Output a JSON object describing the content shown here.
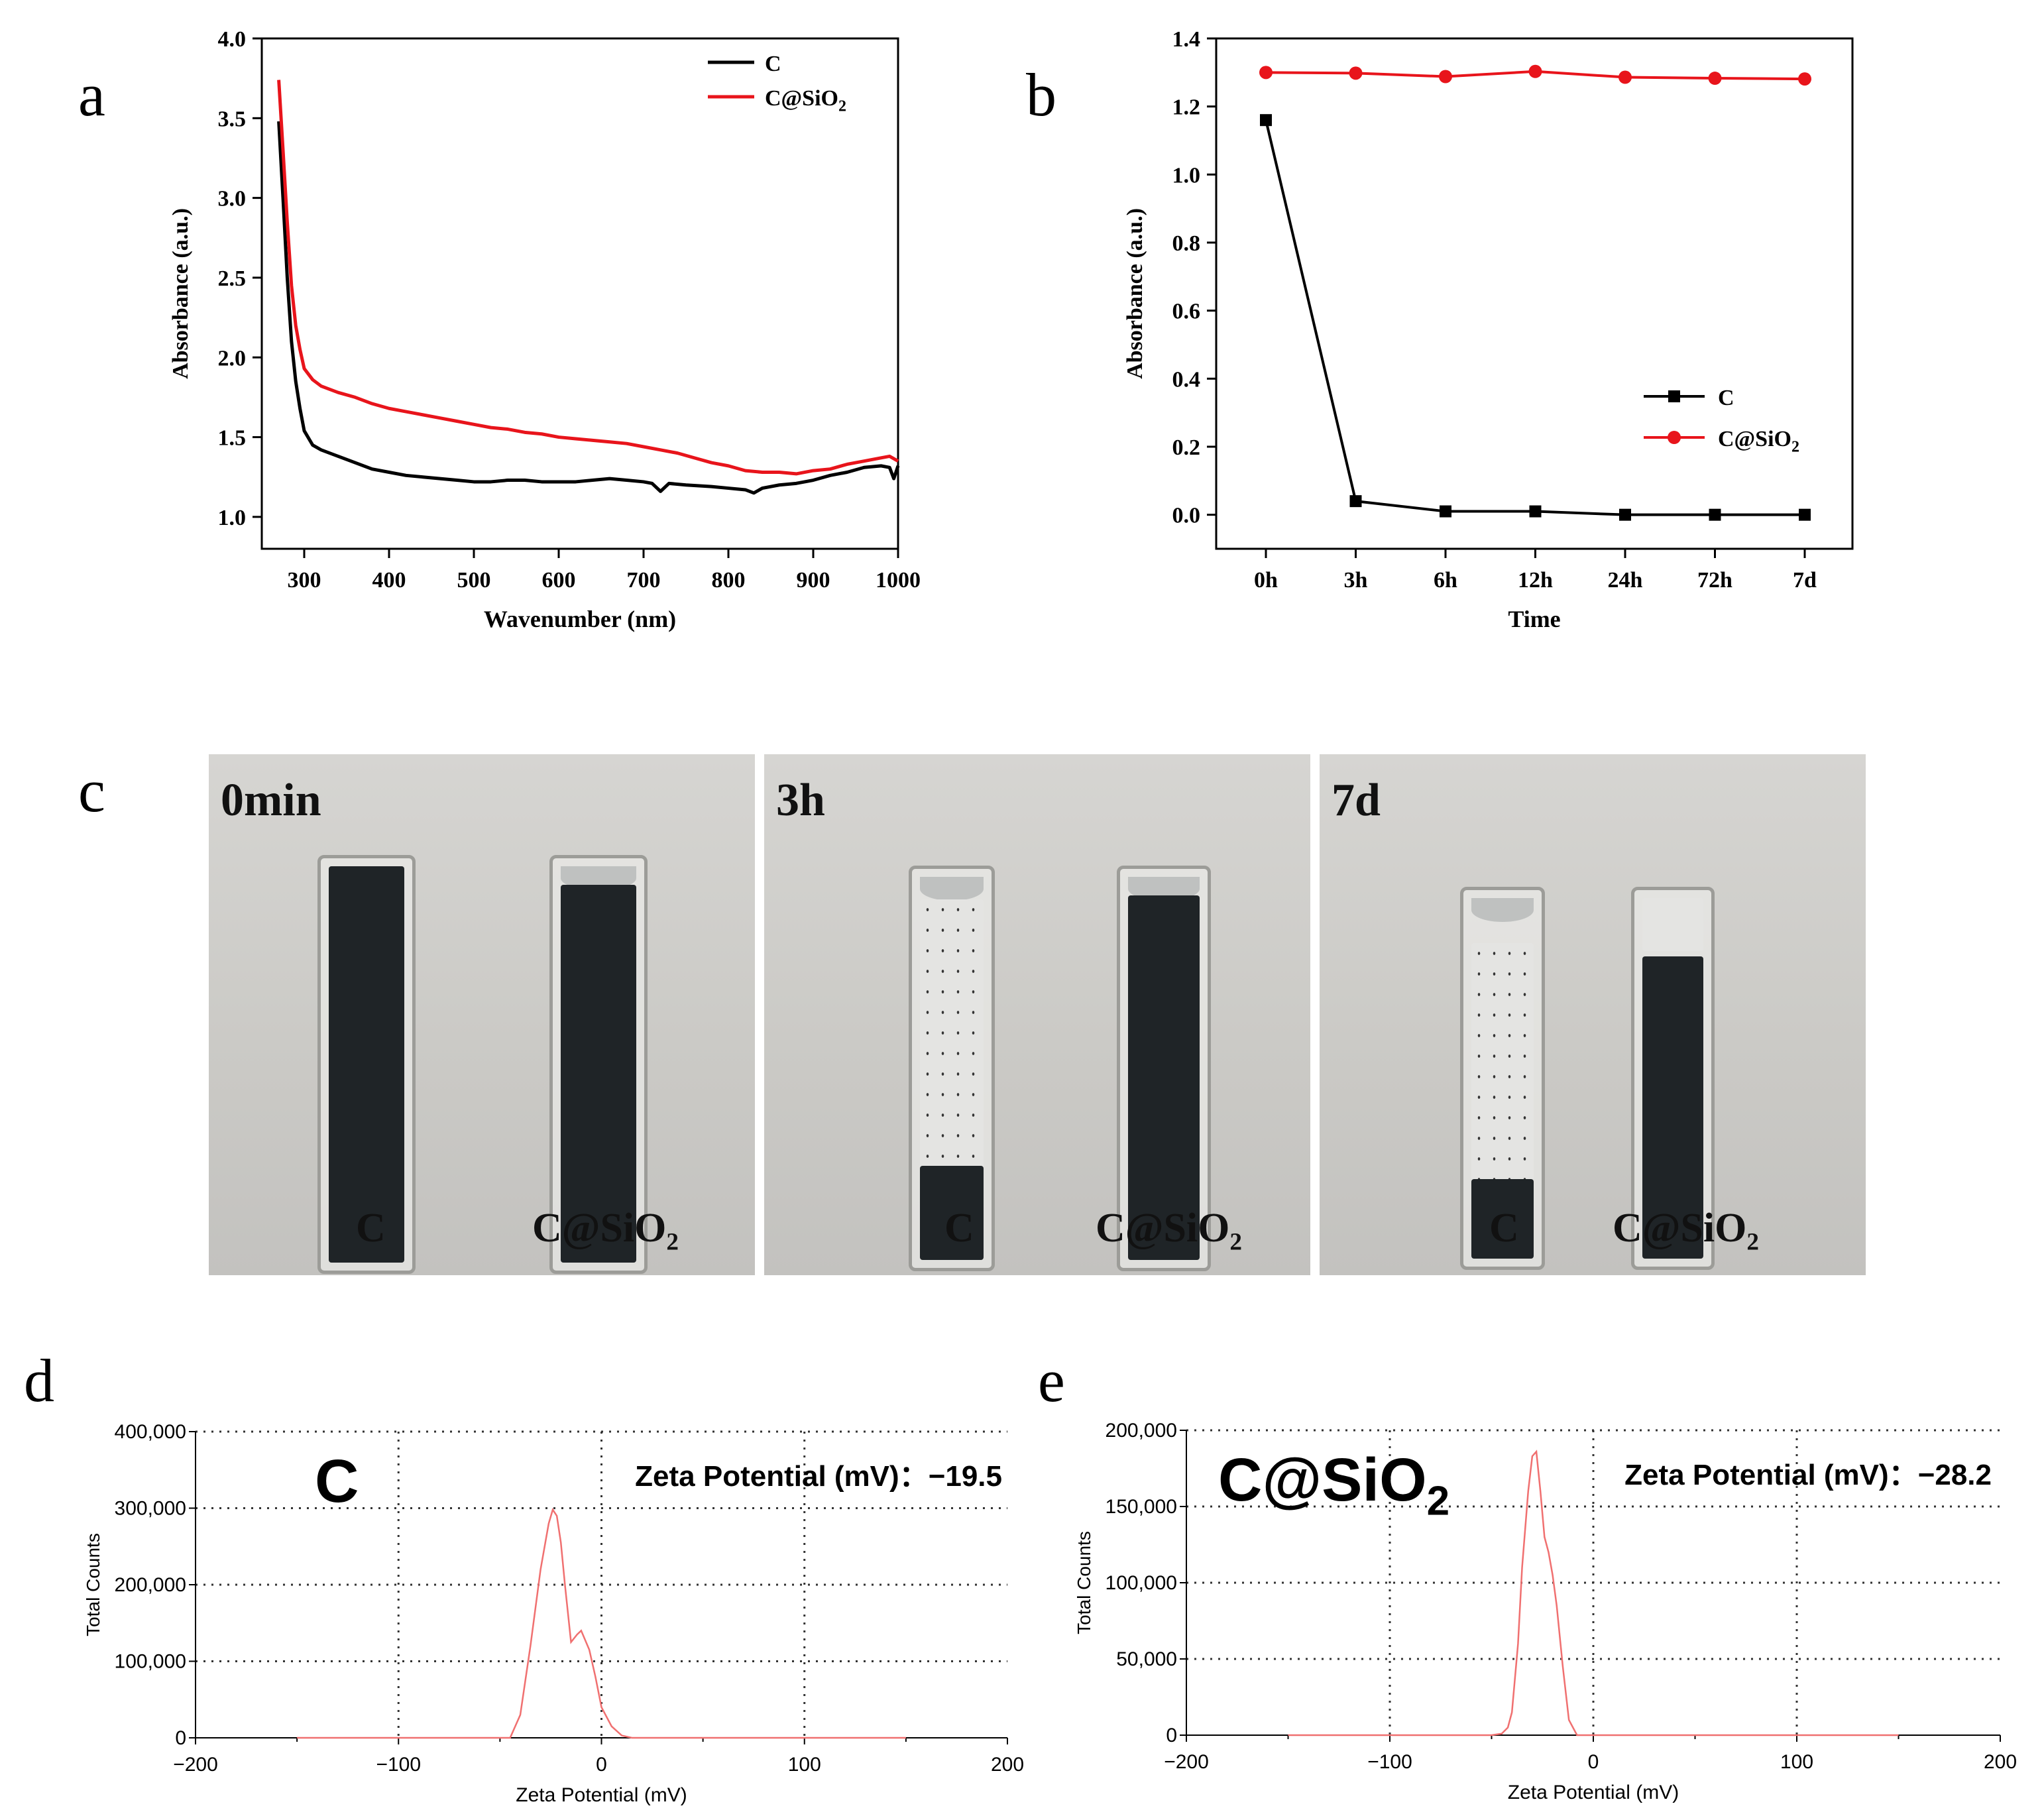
{
  "panels": {
    "a": "a",
    "b": "b",
    "c": "c",
    "d": "d",
    "e": "e"
  },
  "chart_data": [
    {
      "id": "a",
      "type": "line",
      "xlabel": "Wavenumber (nm)",
      "ylabel": "Absorbance (a.u.)",
      "xlim": [
        250,
        1000
      ],
      "ylim": [
        0.8,
        4.0
      ],
      "xticks": [
        "300",
        "400",
        "500",
        "600",
        "700",
        "800",
        "900",
        "1000"
      ],
      "yticks": [
        "1.0",
        "1.5",
        "2.0",
        "2.5",
        "3.0",
        "3.5",
        "4.0"
      ],
      "legend_position": "top-right",
      "series": [
        {
          "name": "C",
          "color": "#000000",
          "x": [
            270,
            275,
            280,
            285,
            290,
            295,
            300,
            310,
            320,
            340,
            360,
            380,
            400,
            420,
            440,
            460,
            480,
            500,
            520,
            540,
            560,
            580,
            600,
            620,
            640,
            660,
            680,
            700,
            710,
            720,
            730,
            750,
            780,
            800,
            820,
            830,
            840,
            860,
            880,
            900,
            920,
            940,
            960,
            980,
            990,
            995,
            1000
          ],
          "y": [
            3.48,
            3.0,
            2.5,
            2.1,
            1.85,
            1.68,
            1.54,
            1.45,
            1.42,
            1.38,
            1.34,
            1.3,
            1.28,
            1.26,
            1.25,
            1.24,
            1.23,
            1.22,
            1.22,
            1.23,
            1.23,
            1.22,
            1.22,
            1.22,
            1.23,
            1.24,
            1.23,
            1.22,
            1.21,
            1.16,
            1.21,
            1.2,
            1.19,
            1.18,
            1.17,
            1.15,
            1.18,
            1.2,
            1.21,
            1.23,
            1.26,
            1.28,
            1.31,
            1.32,
            1.31,
            1.24,
            1.32
          ]
        },
        {
          "name": "C@SiO2",
          "color": "#e8141b",
          "x": [
            270,
            275,
            280,
            285,
            290,
            295,
            300,
            310,
            320,
            340,
            360,
            380,
            400,
            420,
            440,
            460,
            480,
            500,
            520,
            540,
            560,
            580,
            600,
            620,
            640,
            660,
            680,
            700,
            720,
            740,
            760,
            780,
            800,
            820,
            840,
            860,
            880,
            900,
            920,
            940,
            960,
            980,
            990,
            1000
          ],
          "y": [
            3.74,
            3.3,
            2.85,
            2.45,
            2.2,
            2.05,
            1.93,
            1.86,
            1.82,
            1.78,
            1.75,
            1.71,
            1.68,
            1.66,
            1.64,
            1.62,
            1.6,
            1.58,
            1.56,
            1.55,
            1.53,
            1.52,
            1.5,
            1.49,
            1.48,
            1.47,
            1.46,
            1.44,
            1.42,
            1.4,
            1.37,
            1.34,
            1.32,
            1.29,
            1.28,
            1.28,
            1.27,
            1.29,
            1.3,
            1.33,
            1.35,
            1.37,
            1.38,
            1.35
          ]
        }
      ]
    },
    {
      "id": "b",
      "type": "line",
      "xlabel": "Time",
      "ylabel": "Absorbance (a.u.)",
      "ylim": [
        -0.1,
        1.4
      ],
      "categories": [
        "0h",
        "3h",
        "6h",
        "12h",
        "24h",
        "72h",
        "7d"
      ],
      "yticks": [
        "0.0",
        "0.2",
        "0.4",
        "0.6",
        "0.8",
        "1.0",
        "1.2",
        "1.4"
      ],
      "legend_position": "bottom-right",
      "series": [
        {
          "name": "C",
          "color": "#000000",
          "marker": "square",
          "values": [
            1.16,
            0.04,
            0.01,
            0.01,
            0.0,
            0.0,
            0.0
          ]
        },
        {
          "name": "C@SiO2",
          "color": "#e8141b",
          "marker": "circle",
          "values": [
            1.3,
            1.298,
            1.288,
            1.303,
            1.286,
            1.283,
            1.281
          ]
        }
      ]
    },
    {
      "id": "d",
      "type": "line",
      "title": "C",
      "annotation": "Zeta Potential (mV)：−19.5",
      "xlabel": "Zeta Potential (mV)",
      "ylabel": "Total Counts",
      "xlim": [
        -200,
        200
      ],
      "ylim": [
        0,
        400000
      ],
      "xticks": [
        "−200",
        "−100",
        "0",
        "100",
        "200"
      ],
      "yticks": [
        "0",
        "100,000",
        "200,000",
        "300,000",
        "400,000"
      ],
      "series": [
        {
          "name": "C",
          "color": "#f07070",
          "x": [
            -150,
            -45,
            -40,
            -35,
            -30,
            -26,
            -24,
            -22,
            -20,
            -18,
            -15,
            -12,
            -10,
            -6,
            -3,
            0,
            5,
            10,
            15,
            150
          ],
          "y": [
            0,
            0,
            30000,
            120000,
            220000,
            280000,
            298000,
            290000,
            255000,
            200000,
            125000,
            135000,
            140000,
            115000,
            80000,
            40000,
            15000,
            3000,
            0,
            0
          ]
        }
      ]
    },
    {
      "id": "e",
      "type": "line",
      "title": "C@SiO2",
      "annotation": "Zeta Potential  (mV)：−28.2",
      "xlabel": "Zeta Potential (mV)",
      "ylabel": "Total Counts",
      "xlim": [
        -200,
        200
      ],
      "ylim": [
        0,
        200000
      ],
      "xticks": [
        "−200",
        "−100",
        "0",
        "100",
        "200"
      ],
      "yticks": [
        "0",
        "50,000",
        "100,000",
        "150,000",
        "200,000"
      ],
      "series": [
        {
          "name": "C@SiO2",
          "color": "#f07070",
          "x": [
            -150,
            -50,
            -45,
            -42,
            -40,
            -37,
            -35,
            -32,
            -30,
            -28,
            -26,
            -24,
            -22,
            -20,
            -18,
            -15,
            -12,
            -8,
            150
          ],
          "y": [
            0,
            0,
            1000,
            5000,
            15000,
            60000,
            110000,
            160000,
            183000,
            186000,
            160000,
            130000,
            120000,
            105000,
            85000,
            45000,
            10000,
            0,
            0
          ]
        }
      ]
    }
  ],
  "photos": [
    {
      "label": "0min",
      "names": [
        "C",
        "C@SiO₂"
      ]
    },
    {
      "label": "3h",
      "names": [
        "C",
        "C@SiO₂"
      ]
    },
    {
      "label": "7d",
      "names": [
        "C",
        "C@SiO₂"
      ]
    }
  ]
}
